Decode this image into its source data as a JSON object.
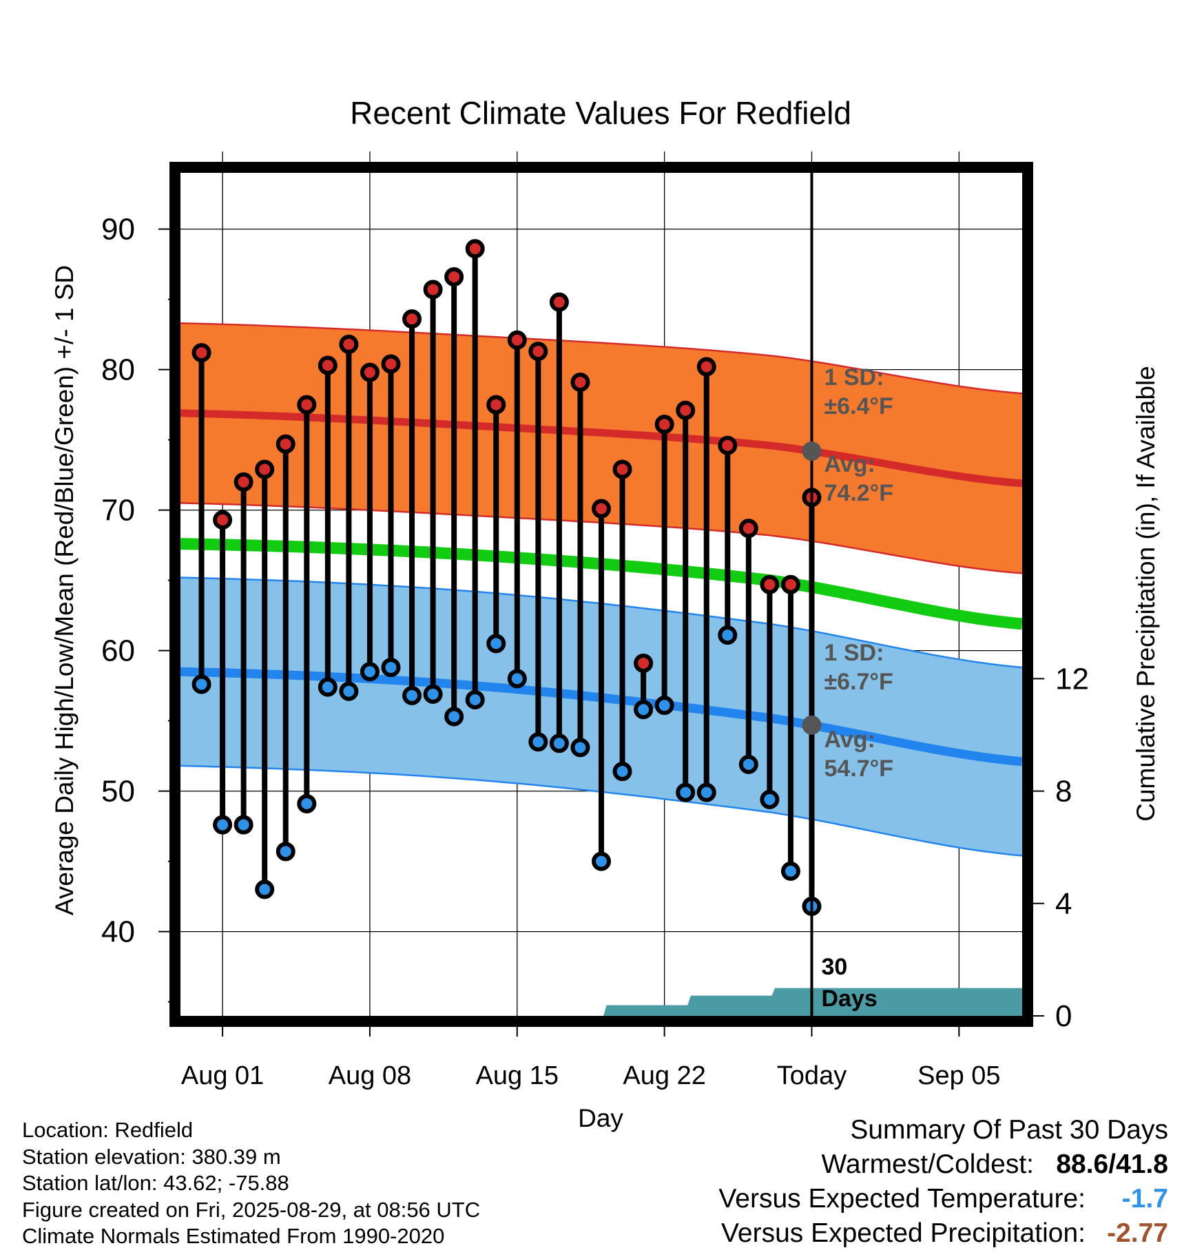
{
  "chart_data": {
    "type": "line",
    "title": "Recent Climate Values For Redfield",
    "xlabel": "Day",
    "ylabel": "Average Daily High/Low/Mean (Red/Blue/Green) +/- 1 SD",
    "y2label": "Cumulative Precipitation (in), If Available",
    "ylim": [
      34,
      94
    ],
    "y2lim": [
      0,
      30
    ],
    "yticks": [
      40,
      50,
      60,
      70,
      80,
      90
    ],
    "y2ticks": [
      0,
      4,
      8,
      12
    ],
    "xticks": [
      "Aug 01",
      "Aug 08",
      "Aug 15",
      "Aug 22",
      "Today",
      "Sep 05"
    ],
    "x_start": "Jul 30",
    "x_end": "Sep 08",
    "today": "Aug 29",
    "grid": true,
    "days": [
      "Jul 31",
      "Aug 01",
      "Aug 02",
      "Aug 03",
      "Aug 04",
      "Aug 05",
      "Aug 06",
      "Aug 07",
      "Aug 08",
      "Aug 09",
      "Aug 10",
      "Aug 11",
      "Aug 12",
      "Aug 13",
      "Aug 14",
      "Aug 15",
      "Aug 16",
      "Aug 17",
      "Aug 18",
      "Aug 19",
      "Aug 20",
      "Aug 21",
      "Aug 22",
      "Aug 23",
      "Aug 24",
      "Aug 25",
      "Aug 26",
      "Aug 27",
      "Aug 28",
      "Aug 29"
    ],
    "series": [
      {
        "name": "High",
        "color": "#d42a2a",
        "values": [
          81.2,
          69.3,
          72.0,
          72.9,
          74.7,
          77.5,
          80.3,
          81.8,
          79.8,
          80.4,
          83.6,
          85.7,
          86.6,
          88.6,
          77.5,
          82.1,
          81.3,
          84.8,
          79.1,
          70.1,
          72.9,
          59.1,
          76.1,
          77.1,
          80.2,
          74.6,
          68.7,
          64.7,
          64.7,
          70.9
        ]
      },
      {
        "name": "Low",
        "color": "#2e93e8",
        "values": [
          57.6,
          47.6,
          47.6,
          43.0,
          45.7,
          49.1,
          57.4,
          57.1,
          58.5,
          58.8,
          56.8,
          56.9,
          55.3,
          56.5,
          60.5,
          58.0,
          53.5,
          53.4,
          53.1,
          45.0,
          51.4,
          55.8,
          56.1,
          49.9,
          49.9,
          61.1,
          51.9,
          49.4,
          44.3,
          41.8
        ]
      }
    ],
    "normals": {
      "dates": [
        "Jul 30",
        "Aug 13",
        "Aug 27",
        "Sep 08"
      ],
      "high_avg": [
        76.9,
        76.0,
        74.6,
        71.9
      ],
      "high_sd": 6.4,
      "low_avg": [
        58.5,
        57.5,
        55.2,
        52.1
      ],
      "low_sd": 6.7,
      "mean_avg": [
        67.6,
        66.8,
        65.0,
        61.9
      ]
    },
    "precip": {
      "days": [
        "Aug 19",
        "Aug 20",
        "Aug 21",
        "Aug 22",
        "Aug 23",
        "Aug 24",
        "Aug 25",
        "Aug 26",
        "Aug 27",
        "Aug 28",
        "Aug 29"
      ],
      "cumulative": [
        0.0,
        0.38,
        0.38,
        0.38,
        0.38,
        0.72,
        0.72,
        0.72,
        0.72,
        0.99,
        0.99
      ]
    },
    "annotations": {
      "high_sd_label": "1 SD:",
      "high_sd_value": "±6.4°F",
      "high_avg_label": "Avg:",
      "high_avg_value": "74.2°F",
      "low_sd_label": "1 SD:",
      "low_sd_value": "±6.7°F",
      "low_avg_label": "Avg:",
      "low_avg_value": "54.7°F",
      "days_count": "30",
      "days_word": "Days"
    },
    "colors": {
      "high_band": "#f57a2e",
      "high_line": "#d42a2a",
      "low_band": "#86c1e9",
      "low_line": "#2285ee",
      "mean_line": "#11cc11",
      "precip": "#4a9ba3",
      "marker_today": "#555555"
    }
  },
  "info": {
    "location": "Location: Redfield",
    "elevation": "Station elevation: 380.39 m",
    "latlon": "Station lat/lon: 43.62; -75.88",
    "created": "Figure created on Fri, 2025-08-29, at 08:56 UTC",
    "normals": "Climate Normals Estimated From 1990-2020"
  },
  "summary": {
    "title": "Summary Of Past 30 Days",
    "warm_cold_label": "Warmest/Coldest:",
    "warm_cold_value": "88.6/41.8",
    "temp_label": "Versus Expected Temperature:",
    "temp_value": "-1.7",
    "temp_color": "#2e93e8",
    "precip_label": "Versus Expected Precipitation:",
    "precip_value": "-2.77",
    "precip_color": "#a0522d"
  }
}
